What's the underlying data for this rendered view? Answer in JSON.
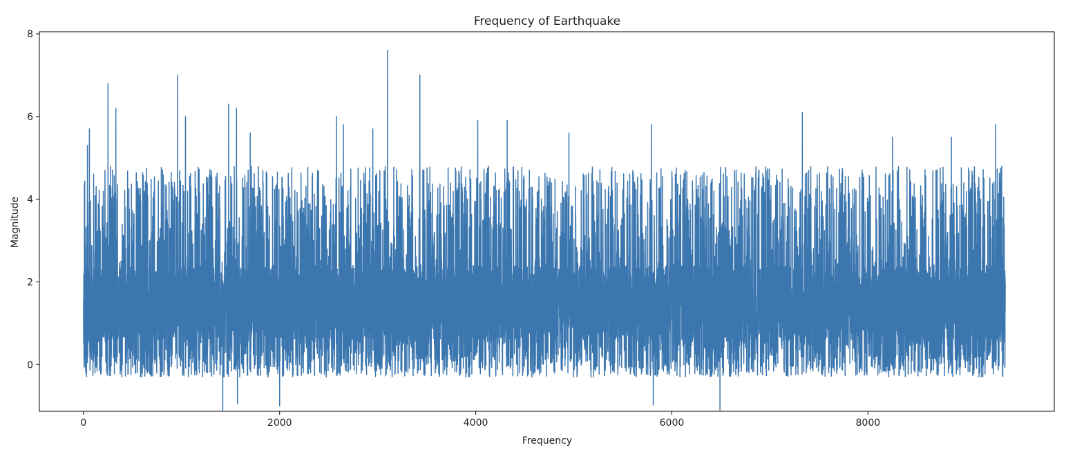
{
  "chart_data": {
    "type": "line",
    "title": "Frequency of Earthquake",
    "xlabel": "Frequency",
    "ylabel": "Magnitude",
    "xlim": [
      -450,
      9900
    ],
    "ylim": [
      -1.13,
      8.05
    ],
    "xticks": [
      0,
      2000,
      4000,
      6000,
      8000
    ],
    "xtick_labels": [
      "0",
      "2000",
      "4000",
      "6000",
      "8000"
    ],
    "yticks": [
      0,
      2,
      4,
      6,
      8
    ],
    "ytick_labels": [
      "0",
      "2",
      "4",
      "6",
      "8"
    ],
    "grid": false,
    "series": [
      {
        "name": "Magnitude",
        "color": "#3b76af",
        "n_points": 9400,
        "x_range": [
          0,
          9400
        ],
        "baseline": 1.5,
        "typical_min": -0.3,
        "typical_max": 4.8,
        "start_value": 1.5,
        "end_value": 2.0,
        "notable_peaks": [
          {
            "x": 40,
            "y": 5.3
          },
          {
            "x": 60,
            "y": 5.7
          },
          {
            "x": 250,
            "y": 6.8
          },
          {
            "x": 330,
            "y": 6.2
          },
          {
            "x": 960,
            "y": 7.0
          },
          {
            "x": 1040,
            "y": 6.0
          },
          {
            "x": 1480,
            "y": 6.3
          },
          {
            "x": 1560,
            "y": 6.2
          },
          {
            "x": 1700,
            "y": 5.6
          },
          {
            "x": 2580,
            "y": 6.0
          },
          {
            "x": 2650,
            "y": 5.8
          },
          {
            "x": 2950,
            "y": 5.7
          },
          {
            "x": 3100,
            "y": 7.6
          },
          {
            "x": 3430,
            "y": 7.0
          },
          {
            "x": 4020,
            "y": 5.9
          },
          {
            "x": 4320,
            "y": 5.9
          },
          {
            "x": 4950,
            "y": 5.6
          },
          {
            "x": 5790,
            "y": 5.8
          },
          {
            "x": 7330,
            "y": 6.1
          },
          {
            "x": 8250,
            "y": 5.5
          },
          {
            "x": 8850,
            "y": 5.5
          },
          {
            "x": 9300,
            "y": 5.8
          }
        ],
        "notable_troughs": [
          {
            "x": 1420,
            "y": -1.1
          },
          {
            "x": 1570,
            "y": -0.95
          },
          {
            "x": 2000,
            "y": -1.0
          },
          {
            "x": 5810,
            "y": -0.98
          },
          {
            "x": 6490,
            "y": -1.1
          }
        ]
      }
    ]
  }
}
